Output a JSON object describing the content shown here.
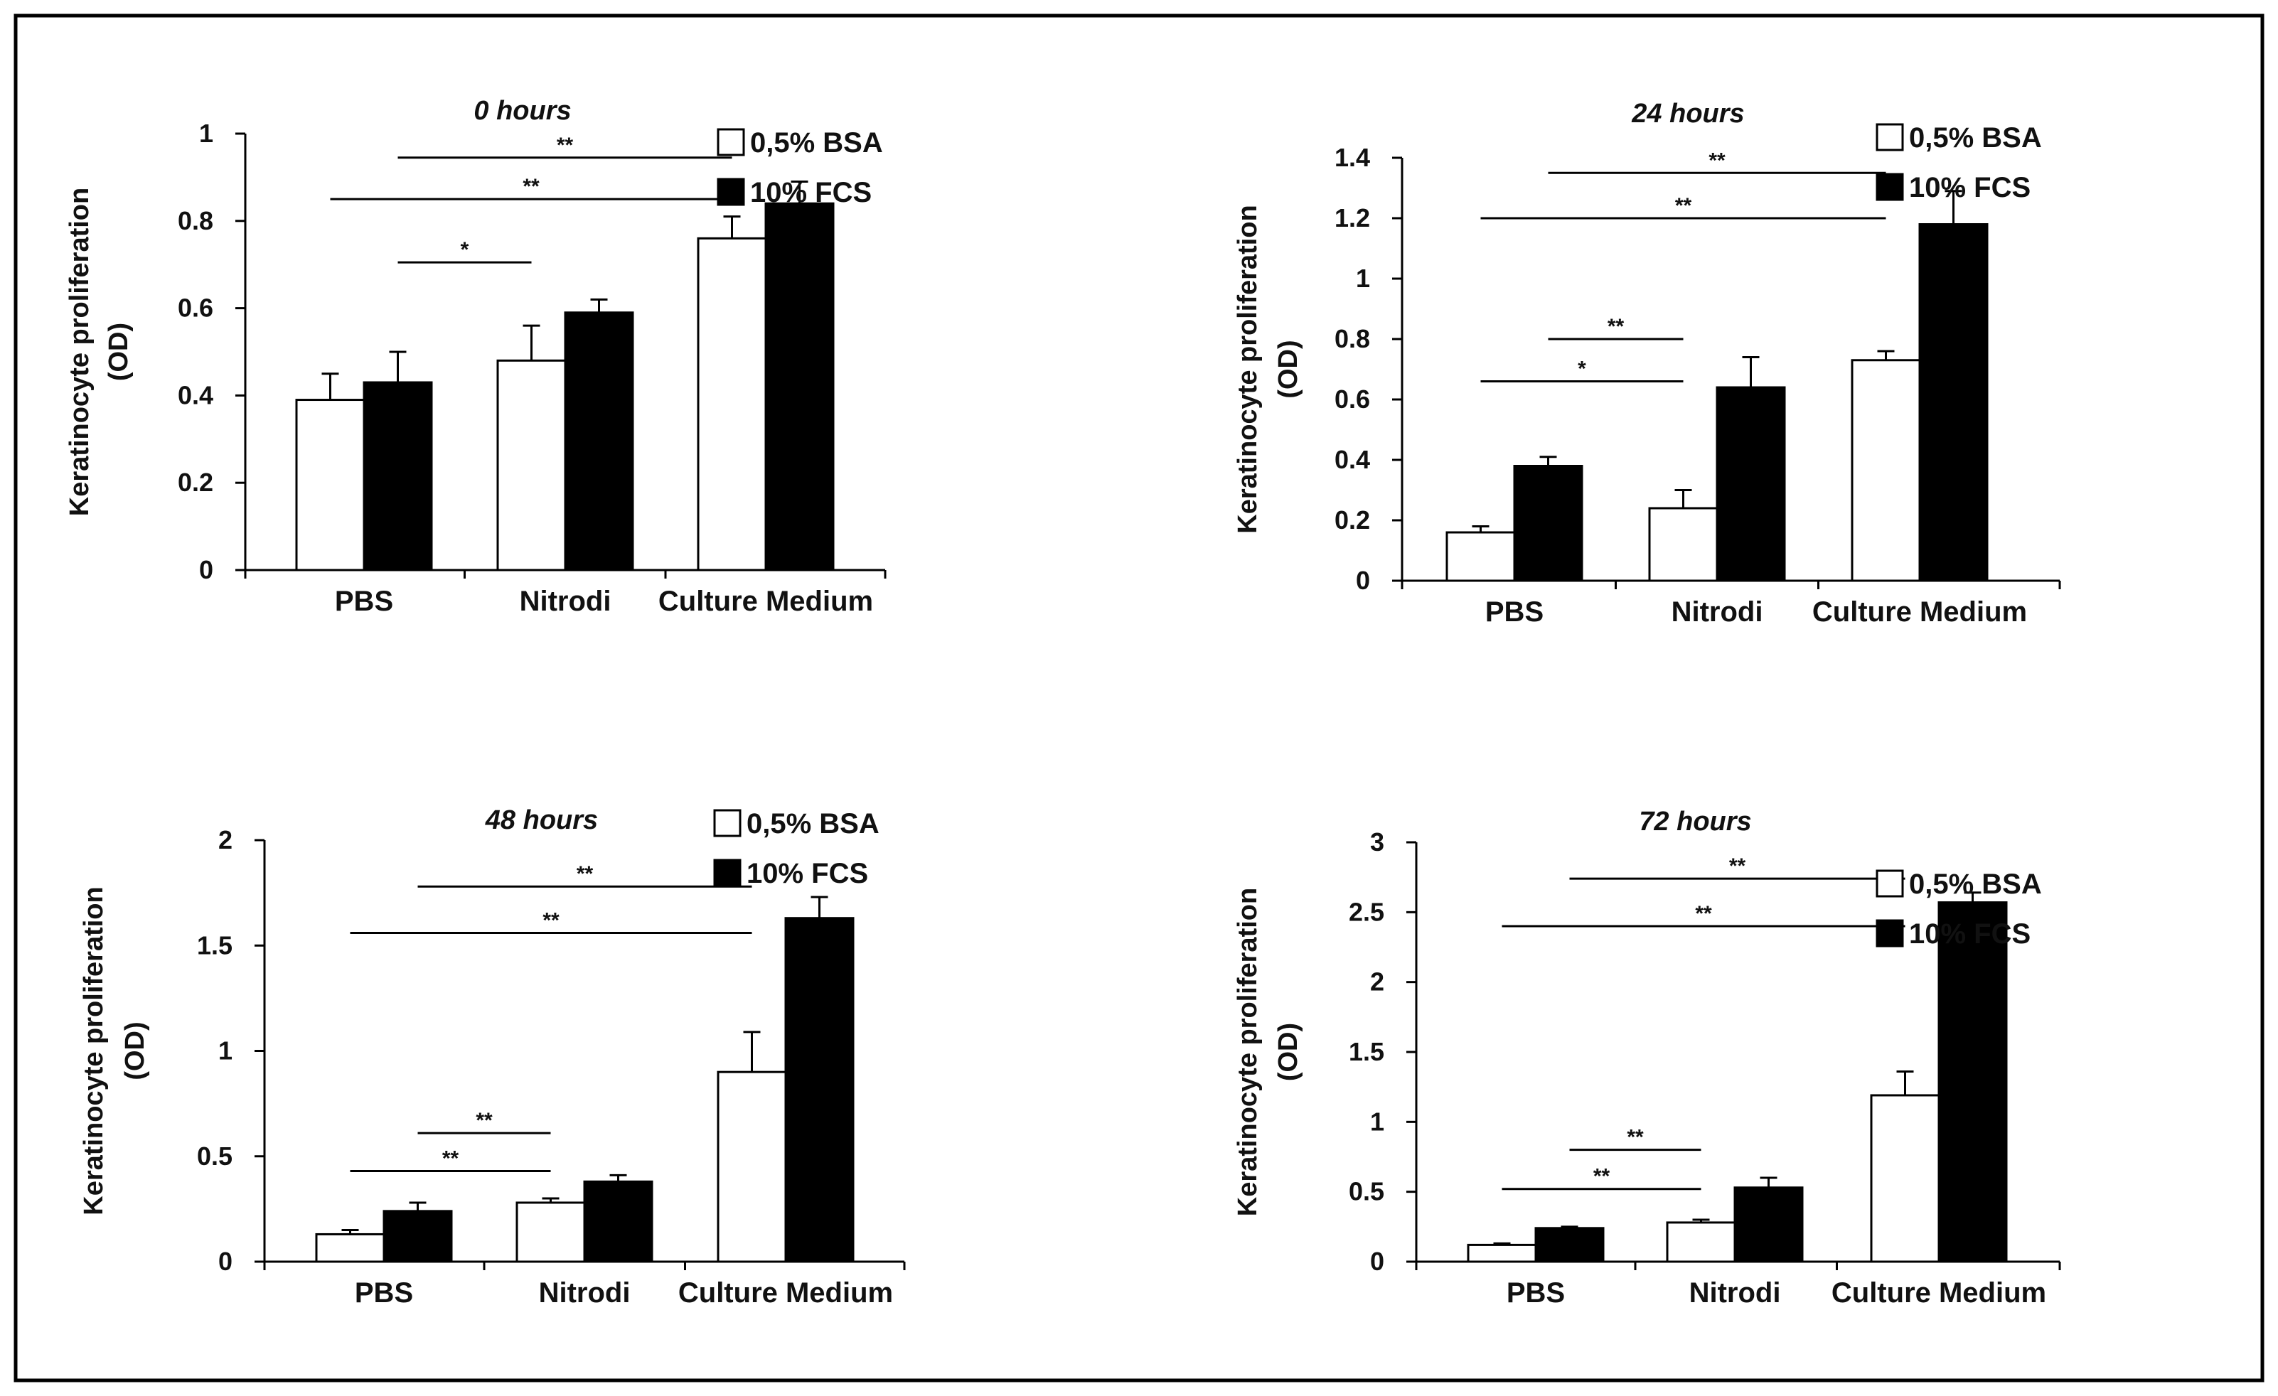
{
  "figure": {
    "border_color": "#000000",
    "bar_colors": {
      "bsa": "#ffffff",
      "fcs": "#000000"
    }
  },
  "chart_data": [
    {
      "type": "bar",
      "title": "0 hours",
      "ylabel_line1": "Keratinocyte proliferation",
      "ylabel_line2": "(OD)",
      "categories": [
        "PBS",
        "Nitrodi",
        "Culture Medium"
      ],
      "ylim": [
        0,
        1
      ],
      "yticks": [
        0,
        0.2,
        0.4,
        0.6,
        0.8,
        1
      ],
      "ytick_labels": [
        "0",
        "0.2",
        "0.4",
        "0.6",
        "0.8",
        "1"
      ],
      "series": [
        {
          "name": "0,5% BSA",
          "values": [
            0.39,
            0.48,
            0.76
          ],
          "errors": [
            0.06,
            0.08,
            0.05
          ]
        },
        {
          "name": "10% FCS",
          "values": [
            0.43,
            0.59,
            0.84
          ],
          "errors": [
            0.07,
            0.03,
            0.05
          ]
        }
      ],
      "legend_position": "top-right",
      "significance": [
        {
          "from": [
            0,
            1
          ],
          "to": [
            2,
            0
          ],
          "label": "**",
          "y": 0.945
        },
        {
          "from": [
            0,
            0
          ],
          "to": [
            2,
            0
          ],
          "label": "**",
          "y": 0.85
        },
        {
          "from": [
            0,
            1
          ],
          "to": [
            1,
            0
          ],
          "label": "*",
          "y": 0.705
        }
      ]
    },
    {
      "type": "bar",
      "title": "24 hours",
      "ylabel_line1": "Keratinocyte proliferation",
      "ylabel_line2": "(OD)",
      "categories": [
        "PBS",
        "Nitrodi",
        "Culture Medium"
      ],
      "ylim": [
        0,
        1.4
      ],
      "yticks": [
        0,
        0.2,
        0.4,
        0.6,
        0.8,
        1,
        1.2,
        1.4
      ],
      "ytick_labels": [
        "0",
        "0.2",
        "0.4",
        "0.6",
        "0.8",
        "1",
        "1.2",
        "1.4"
      ],
      "series": [
        {
          "name": "0,5% BSA",
          "values": [
            0.16,
            0.24,
            0.73
          ],
          "errors": [
            0.02,
            0.06,
            0.03
          ]
        },
        {
          "name": "10% FCS",
          "values": [
            0.38,
            0.64,
            1.18
          ],
          "errors": [
            0.03,
            0.1,
            0.11
          ]
        }
      ],
      "legend_position": "top-right",
      "significance": [
        {
          "from": [
            0,
            1
          ],
          "to": [
            2,
            0
          ],
          "label": "**",
          "y": 1.35
        },
        {
          "from": [
            0,
            0
          ],
          "to": [
            2,
            0
          ],
          "label": "**",
          "y": 1.2
        },
        {
          "from": [
            0,
            1
          ],
          "to": [
            1,
            0
          ],
          "label": "**",
          "y": 0.8
        },
        {
          "from": [
            0,
            0
          ],
          "to": [
            1,
            0
          ],
          "label": "*",
          "y": 0.66
        }
      ]
    },
    {
      "type": "bar",
      "title": "48 hours",
      "ylabel_line1": "Keratinocyte proliferation",
      "ylabel_line2": "(OD)",
      "categories": [
        "PBS",
        "Nitrodi",
        "Culture Medium"
      ],
      "ylim": [
        0,
        2
      ],
      "yticks": [
        0,
        0.5,
        1,
        1.5,
        2
      ],
      "ytick_labels": [
        "0",
        "0.5",
        "1",
        "1.5",
        "2"
      ],
      "series": [
        {
          "name": "0,5% BSA",
          "values": [
            0.13,
            0.28,
            0.9
          ],
          "errors": [
            0.02,
            0.02,
            0.19
          ]
        },
        {
          "name": "10% FCS",
          "values": [
            0.24,
            0.38,
            1.63
          ],
          "errors": [
            0.04,
            0.03,
            0.1
          ]
        }
      ],
      "legend_position": "top-right",
      "significance": [
        {
          "from": [
            0,
            1
          ],
          "to": [
            2,
            0
          ],
          "label": "**",
          "y": 1.78
        },
        {
          "from": [
            0,
            0
          ],
          "to": [
            2,
            0
          ],
          "label": "**",
          "y": 1.56
        },
        {
          "from": [
            0,
            1
          ],
          "to": [
            1,
            0
          ],
          "label": "**",
          "y": 0.61
        },
        {
          "from": [
            0,
            0
          ],
          "to": [
            1,
            0
          ],
          "label": "**",
          "y": 0.43
        }
      ]
    },
    {
      "type": "bar",
      "title": "72 hours",
      "ylabel_line1": "Keratinocyte proliferation",
      "ylabel_line2": "(OD)",
      "categories": [
        "PBS",
        "Nitrodi",
        "Culture Medium"
      ],
      "ylim": [
        0,
        3
      ],
      "yticks": [
        0,
        0.5,
        1,
        1.5,
        2,
        2.5,
        3
      ],
      "ytick_labels": [
        "0",
        "0.5",
        "1",
        "1.5",
        "2",
        "2.5",
        "3"
      ],
      "series": [
        {
          "name": "0,5% BSA",
          "values": [
            0.12,
            0.28,
            1.19
          ],
          "errors": [
            0.01,
            0.02,
            0.17
          ]
        },
        {
          "name": "10% FCS",
          "values": [
            0.24,
            0.53,
            2.57
          ],
          "errors": [
            0.01,
            0.07,
            0.07
          ]
        }
      ],
      "legend_position": "top-right",
      "significance": [
        {
          "from": [
            0,
            1
          ],
          "to": [
            2,
            0
          ],
          "label": "**",
          "y": 2.74
        },
        {
          "from": [
            0,
            0
          ],
          "to": [
            2,
            0
          ],
          "label": "**",
          "y": 2.4
        },
        {
          "from": [
            0,
            1
          ],
          "to": [
            1,
            0
          ],
          "label": "**",
          "y": 0.8
        },
        {
          "from": [
            0,
            0
          ],
          "to": [
            1,
            0
          ],
          "label": "**",
          "y": 0.52
        }
      ]
    }
  ]
}
